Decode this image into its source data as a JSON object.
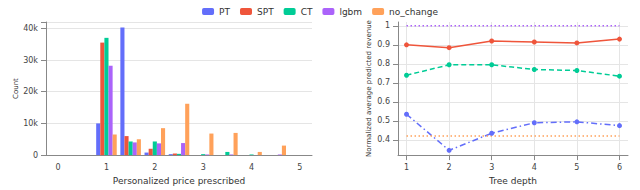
{
  "chart_data": [
    {
      "type": "bar",
      "x_label": "Personalized price prescribed",
      "y_label": "Count",
      "categories": [
        "0",
        null,
        "1",
        null,
        "2",
        null,
        "3",
        null,
        "4",
        null,
        "5"
      ],
      "series": [
        {
          "name": "PT",
          "color": "#636efa",
          "values": [
            0,
            0,
            10000,
            40300,
            800,
            300,
            0,
            0,
            0,
            0,
            0
          ]
        },
        {
          "name": "SPT",
          "color": "#ef553b",
          "values": [
            0,
            0,
            35500,
            6000,
            2000,
            500,
            0,
            0,
            0,
            0,
            0
          ]
        },
        {
          "name": "CT",
          "color": "#00cc96",
          "values": [
            0,
            0,
            37000,
            4300,
            4300,
            400,
            300,
            1000,
            200,
            0,
            0
          ]
        },
        {
          "name": "lgbm",
          "color": "#ab63fa",
          "values": [
            0,
            0,
            28200,
            4000,
            3700,
            3800,
            200,
            200,
            0,
            200,
            0
          ]
        },
        {
          "name": "no_change",
          "color": "#ffa15a",
          "values": [
            0,
            0,
            6500,
            5000,
            8500,
            16200,
            6800,
            7000,
            1000,
            3000,
            0
          ]
        }
      ],
      "ylim": [
        0,
        42000
      ],
      "yticks": [
        0,
        {
          "value": 10000,
          "label": "10k"
        },
        {
          "value": 20000,
          "label": "20k"
        },
        {
          "value": 30000,
          "label": "30k"
        },
        {
          "value": 40000,
          "label": "40k"
        }
      ],
      "grid": true,
      "legend": "top"
    },
    {
      "type": "line",
      "x_label": "Tree depth",
      "y_label": "Normalized average predicted revenue",
      "x": [
        1,
        2,
        3,
        4,
        5,
        6
      ],
      "series": [
        {
          "name": "PT",
          "color": "#636efa",
          "marker": "circle",
          "line_style": "dashdot",
          "values": [
            0.535,
            0.345,
            0.435,
            0.49,
            0.495,
            0.475
          ]
        },
        {
          "name": "SPT",
          "color": "#ef553b",
          "marker": "circle",
          "line_style": "solid",
          "values": [
            0.9,
            0.885,
            0.92,
            0.915,
            0.91,
            0.93
          ]
        },
        {
          "name": "CT",
          "color": "#00cc96",
          "marker": "circle",
          "line_style": "dashed",
          "values": [
            0.74,
            0.795,
            0.795,
            0.77,
            0.765,
            0.735
          ]
        },
        {
          "name": "lgbm",
          "color": "#ab63fa",
          "marker": "none",
          "line_style": "dotted",
          "values": [
            1,
            1,
            1,
            1,
            1,
            1
          ]
        },
        {
          "name": "no_change",
          "color": "#ffa15a",
          "marker": "none",
          "line_style": "dotted",
          "values": [
            0.42,
            0.42,
            0.42,
            0.42,
            0.42,
            0.42
          ]
        }
      ],
      "xlim": [
        0.8,
        6.2
      ],
      "xticks": [
        1,
        2,
        3,
        4,
        5,
        6
      ],
      "ylim": [
        0.32,
        1.02
      ],
      "yticks": [
        0.4,
        0.5,
        0.6,
        0.7,
        0.8,
        0.9,
        1
      ],
      "grid": true
    }
  ]
}
